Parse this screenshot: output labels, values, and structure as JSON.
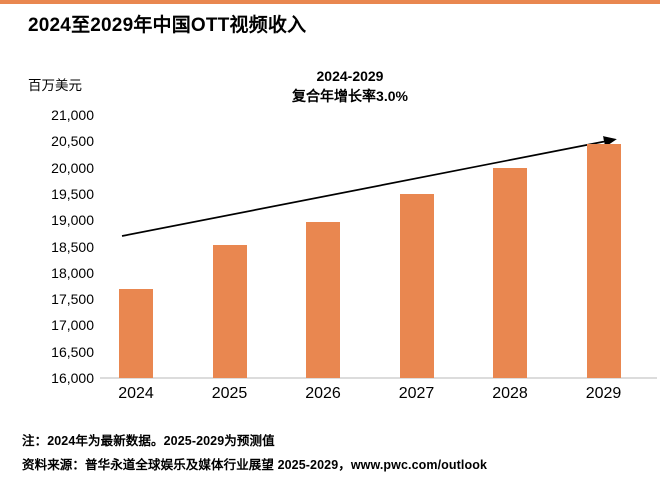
{
  "page": {
    "title": "2024至2029年中国OTT视频收入",
    "y_axis_unit": "百万美元",
    "annotation_line1": "2024-2029",
    "annotation_line2": "复合年增长率3.0%",
    "note1": "注：2024年为最新数据。2025-2029为预测值",
    "note2": "资料来源：普华永道全球娱乐及媒体行业展望 2025-2029，www.pwc.com/outlook"
  },
  "colors": {
    "bar": "#E98750",
    "accent_line": "#E98750",
    "axis_line": "#DCDCDC",
    "arrow": "#000000",
    "text": "#000000"
  },
  "chart_data": {
    "type": "bar",
    "title": "2024至2029年中国OTT视频收入",
    "categories": [
      "2024",
      "2025",
      "2026",
      "2027",
      "2028",
      "2029"
    ],
    "values": [
      17700,
      18530,
      18960,
      19500,
      20000,
      20450
    ],
    "series_name": "中国OTT视频收入",
    "xlabel": "",
    "ylabel": "百万美元",
    "ylim": [
      16000,
      21000
    ],
    "ytick_step": 500,
    "yticks": [
      "21,000",
      "20,500",
      "20,000",
      "19,500",
      "19,000",
      "18,500",
      "18,000",
      "17,500",
      "17,000",
      "16,500",
      "16,000"
    ],
    "annotation": "2024-2029 复合年增长率3.0%",
    "cagr_percent": 3.0,
    "trend_arrow": true,
    "grid": false,
    "legend_position": "none",
    "bar_color": "#E98750"
  }
}
